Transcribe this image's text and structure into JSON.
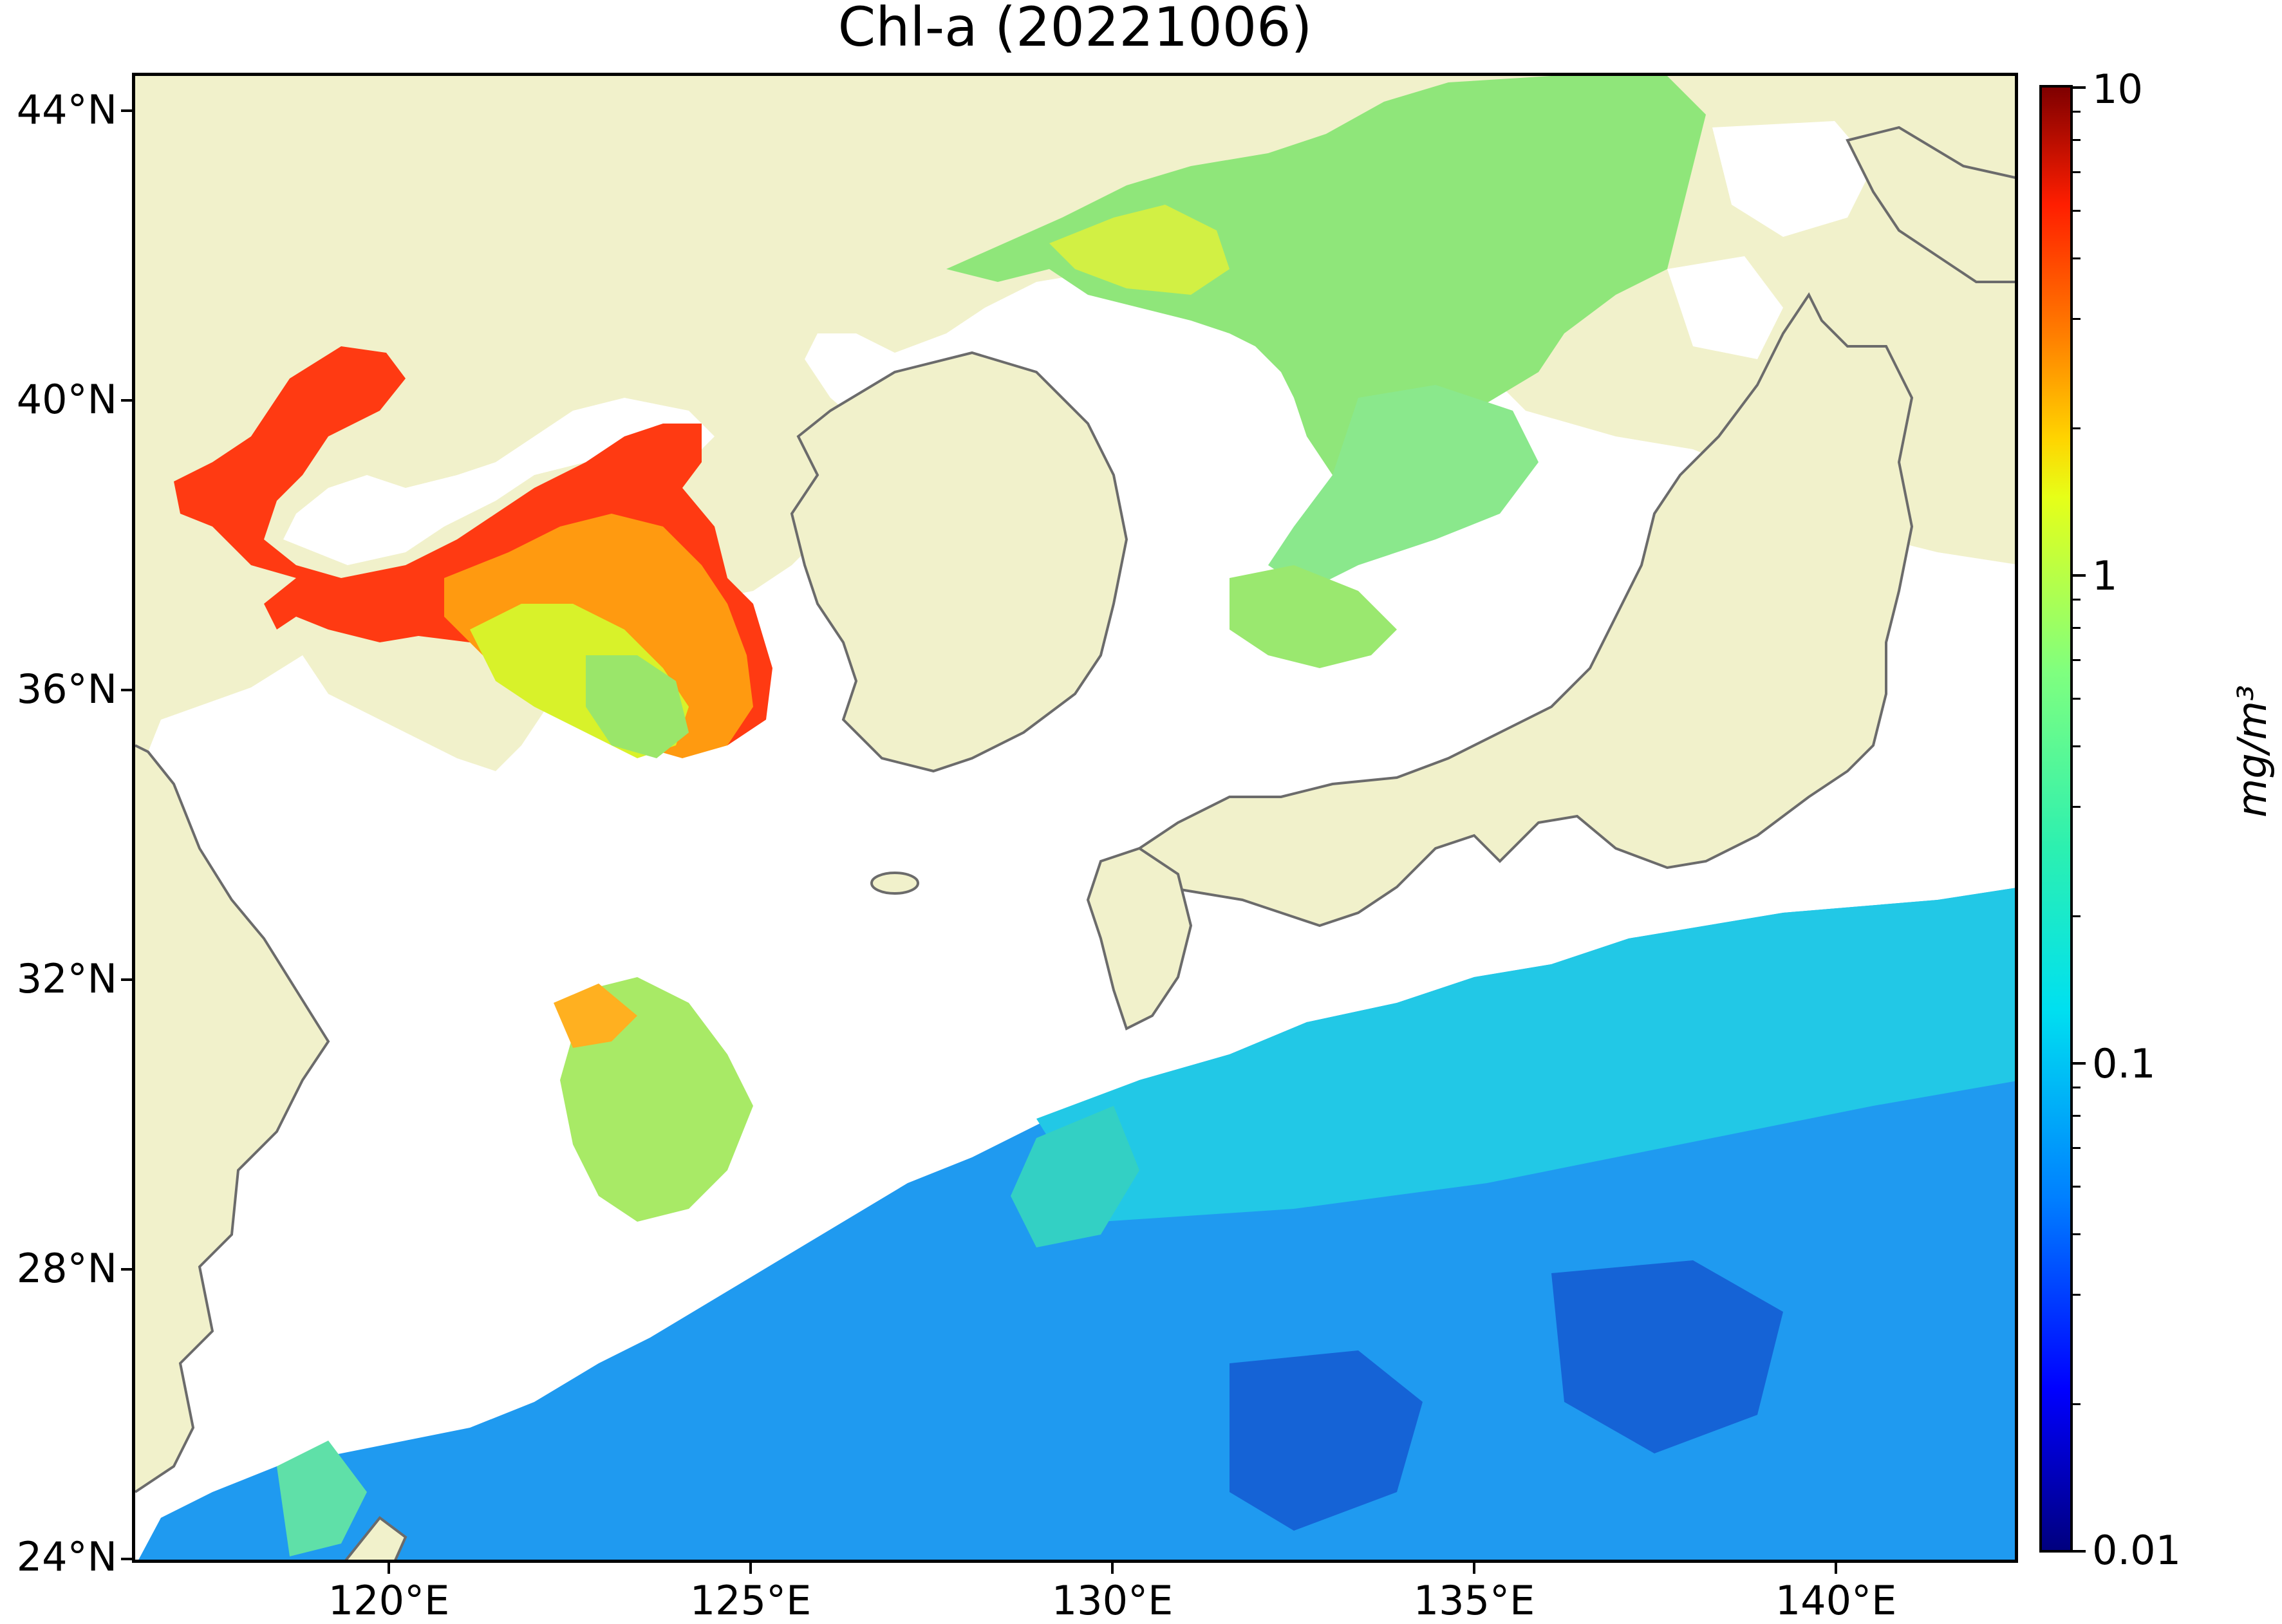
{
  "title": "Chl-a (20221006)",
  "colorbar": {
    "unit": "mg/m³",
    "colormap": "jet",
    "scale": "log",
    "ticks": [
      "10",
      "1",
      "0.1",
      "0.01"
    ],
    "colors": {
      "low": "#00007f",
      "mid": "#7fff7f",
      "high": "#7f0000"
    }
  },
  "latitude_labels": [
    "44°N",
    "40°N",
    "36°N",
    "32°N",
    "28°N",
    "24°N"
  ],
  "longitude_labels": [
    "120°E",
    "125°E",
    "130°E",
    "135°E",
    "140°E"
  ],
  "colors": {
    "land": "#f1f1cb",
    "no_data": "#ffffff",
    "coastline": "#6b6b6b",
    "open_ocean": "#1f9af0",
    "bohai": "#ff3a12",
    "sea_of_japan": "#8fe67a"
  }
}
